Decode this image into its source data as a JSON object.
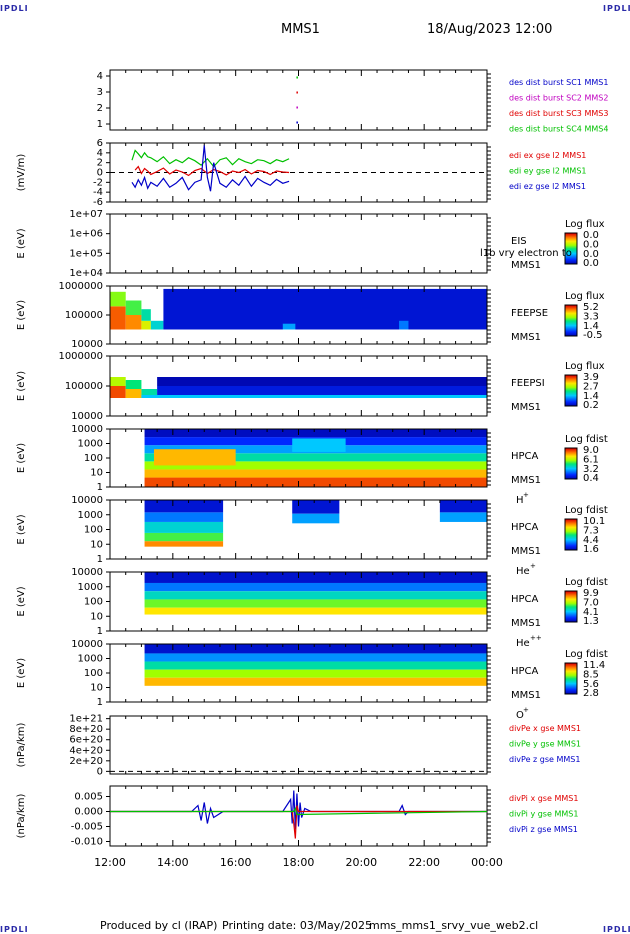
{
  "header": {
    "logo_left": "IPDLI",
    "logo_right": "IPDLI",
    "spacecraft": "MMS1",
    "datetime": "18/Aug/2023 12:00"
  },
  "footer": {
    "logo_left": "IPDLI",
    "logo_right": "IPDLI",
    "produced_by": "Produced by cl (IRAP)",
    "printing_date": "Printing date: 03/May/2025",
    "script_name": "mms_mms1_srvy_vue_web2.cl"
  },
  "time_axis": {
    "labels": [
      "12:00",
      "14:00",
      "16:00",
      "18:00",
      "20:00",
      "22:00",
      "00:00"
    ],
    "start_hour": 12,
    "end_hour": 24
  },
  "chart_data": [
    {
      "id": "burst",
      "type": "scatter",
      "yticks": [
        "4",
        "3",
        "2",
        "1"
      ],
      "ylim": [
        0.5,
        4.5
      ],
      "legend": [
        {
          "label": "des dist burst SC1 MMS1",
          "color": "#0000c8"
        },
        {
          "label": "des dist burst SC2 MMS2",
          "color": "#c000c0"
        },
        {
          "label": "des dist burst SC3 MMS3",
          "color": "#e00000"
        },
        {
          "label": "des dist burst SC4 MMS4",
          "color": "#00c000"
        }
      ],
      "series": [
        {
          "name": "des dist burst SC4 MMS4",
          "color": "#00c000",
          "points": [
            [
              17.95,
              4
            ]
          ]
        },
        {
          "name": "des dist burst SC3 MMS3",
          "color": "#e00000",
          "points": [
            [
              17.95,
              3
            ]
          ]
        },
        {
          "name": "des dist burst SC2 MMS2",
          "color": "#c000c0",
          "points": [
            [
              17.95,
              2
            ]
          ]
        },
        {
          "name": "des dist burst SC1 MMS1",
          "color": "#0000c8",
          "points": [
            [
              17.95,
              1
            ]
          ]
        }
      ]
    },
    {
      "id": "edi",
      "type": "line",
      "ylabel": "(mV/m)",
      "yticks": [
        "6",
        "4",
        "2",
        "0",
        "-2",
        "-4",
        "-6"
      ],
      "ylim": [
        -6,
        6
      ],
      "legend": [
        {
          "label": "edi ex gse l2 MMS1",
          "color": "#e00000"
        },
        {
          "label": "edi ey gse l2 MMS1",
          "color": "#00c000"
        },
        {
          "label": "edi ez gse l2 MMS1",
          "color": "#0000c8"
        }
      ],
      "series": [
        {
          "name": "edi ey gse l2 MMS1",
          "color": "#00c000",
          "x": [
            12.7,
            12.8,
            12.9,
            13.0,
            13.1,
            13.2,
            13.3,
            13.5,
            13.7,
            13.9,
            14.1,
            14.3,
            14.5,
            14.7,
            14.9,
            15.1,
            15.3,
            15.5,
            15.7,
            15.9,
            16.1,
            16.3,
            16.5,
            16.7,
            16.9,
            17.1,
            17.3,
            17.5,
            17.7
          ],
          "values": [
            2.5,
            4.5,
            3.8,
            3.0,
            4.0,
            3.2,
            3.0,
            2.2,
            3.2,
            1.8,
            2.6,
            2.0,
            3.0,
            2.4,
            1.5,
            2.8,
            1.2,
            2.6,
            3.0,
            1.6,
            2.8,
            2.2,
            1.8,
            2.6,
            2.4,
            1.8,
            2.6,
            2.2,
            2.8
          ]
        },
        {
          "name": "edi ex gse l2 MMS1",
          "color": "#e00000",
          "x": [
            12.8,
            12.9,
            13.0,
            13.1,
            13.2,
            13.3,
            13.5,
            13.7,
            13.9,
            14.1,
            14.3,
            14.5,
            14.7,
            14.9,
            15.1,
            15.3,
            15.5,
            15.7,
            15.9,
            16.1,
            16.3,
            16.5,
            16.7,
            16.9,
            17.1,
            17.3,
            17.5,
            17.7
          ],
          "values": [
            0.5,
            1.2,
            -0.2,
            0.8,
            0.3,
            -0.4,
            0.2,
            0.9,
            -0.3,
            0.5,
            0.1,
            -0.6,
            0.4,
            0.8,
            -0.2,
            0.6,
            0.2,
            -0.5,
            0.3,
            0.0,
            0.6,
            -0.3,
            0.4,
            0.2,
            -0.4,
            0.3,
            0.1,
            0.0
          ]
        },
        {
          "name": "edi ez gse l2 MMS1",
          "color": "#0000c8",
          "x": [
            12.7,
            12.8,
            12.9,
            13.0,
            13.1,
            13.2,
            13.3,
            13.5,
            13.7,
            13.9,
            14.1,
            14.3,
            14.5,
            14.7,
            14.9,
            15.0,
            15.1,
            15.2,
            15.3,
            15.5,
            15.7,
            15.9,
            16.1,
            16.3,
            16.5,
            16.7,
            16.9,
            17.1,
            17.3,
            17.5,
            17.7
          ],
          "values": [
            -2.0,
            -3.0,
            -1.5,
            -2.6,
            -1.0,
            -3.2,
            -2.0,
            -2.8,
            -1.2,
            -3.0,
            -2.2,
            -1.0,
            -3.5,
            -2.0,
            -1.5,
            5.5,
            -1.0,
            -3.8,
            2.0,
            -2.2,
            -3.0,
            -1.5,
            -2.6,
            -0.8,
            -2.8,
            -1.2,
            -2.0,
            -2.6,
            -1.4,
            -2.2,
            -1.8
          ]
        }
      ],
      "reference_line": 0
    },
    {
      "id": "eis",
      "type": "heatmap",
      "ylabel": "E (eV)",
      "yticks": [
        "1e+07",
        "1e+06",
        "1e+05",
        "1e+04"
      ],
      "ylog_range": [
        4,
        7
      ],
      "instrument": [
        "EIS",
        "MMS1"
      ],
      "overlay_text": "l1b vry electron to",
      "colorbar_title": "Log flux",
      "colorbar_ticks": [
        "0.0",
        "0.0",
        "0.0",
        "0.0"
      ],
      "cells": []
    },
    {
      "id": "feepse",
      "type": "heatmap",
      "ylabel": "E (eV)",
      "yticks": [
        "1000000",
        "100000",
        "10000"
      ],
      "ylog_range": [
        4,
        6
      ],
      "instrument": [
        "FEEPSE",
        "MMS1"
      ],
      "colorbar_title": "Log flux",
      "colorbar_ticks": [
        "5.2",
        "3.3",
        "1.4",
        "-0.5"
      ],
      "cells": [
        {
          "t0": 12.0,
          "t1": 12.5,
          "e0": 4.5,
          "e1": 5.3,
          "level": 0.9
        },
        {
          "t0": 12.0,
          "t1": 12.5,
          "e0": 5.3,
          "e1": 5.8,
          "level": 0.6
        },
        {
          "t0": 12.5,
          "t1": 13.0,
          "e0": 4.5,
          "e1": 5.0,
          "level": 0.85
        },
        {
          "t0": 12.5,
          "t1": 13.0,
          "e0": 5.0,
          "e1": 5.5,
          "level": 0.55
        },
        {
          "t0": 13.0,
          "t1": 13.3,
          "e0": 4.5,
          "e1": 4.8,
          "level": 0.7
        },
        {
          "t0": 13.0,
          "t1": 13.3,
          "e0": 4.8,
          "e1": 5.2,
          "level": 0.45
        },
        {
          "t0": 13.3,
          "t1": 13.7,
          "e0": 4.5,
          "e1": 4.8,
          "level": 0.4
        },
        {
          "t0": 13.7,
          "t1": 24.0,
          "e0": 4.5,
          "e1": 5.9,
          "level": 0.08
        },
        {
          "t0": 17.5,
          "t1": 17.9,
          "e0": 4.5,
          "e1": 4.7,
          "level": 0.3
        },
        {
          "t0": 21.2,
          "t1": 21.5,
          "e0": 4.5,
          "e1": 4.8,
          "level": 0.25
        }
      ]
    },
    {
      "id": "feepsi",
      "type": "heatmap",
      "ylabel": "E (eV)",
      "yticks": [
        "1000000",
        "100000",
        "10000"
      ],
      "ylog_range": [
        4,
        6
      ],
      "instrument": [
        "FEEPSI",
        "MMS1"
      ],
      "colorbar_title": "Log flux",
      "colorbar_ticks": [
        "3.9",
        "2.7",
        "1.4",
        "0.2"
      ],
      "cells": [
        {
          "t0": 12.0,
          "t1": 12.5,
          "e0": 4.6,
          "e1": 5.0,
          "level": 0.92
        },
        {
          "t0": 12.0,
          "t1": 12.5,
          "e0": 5.0,
          "e1": 5.3,
          "level": 0.65
        },
        {
          "t0": 12.5,
          "t1": 13.0,
          "e0": 4.6,
          "e1": 4.9,
          "level": 0.8
        },
        {
          "t0": 12.5,
          "t1": 13.0,
          "e0": 4.9,
          "e1": 5.2,
          "level": 0.5
        },
        {
          "t0": 13.0,
          "t1": 13.5,
          "e0": 4.6,
          "e1": 4.9,
          "level": 0.45
        },
        {
          "t0": 13.0,
          "t1": 24.0,
          "e0": 4.6,
          "e1": 4.7,
          "level": 0.35
        },
        {
          "t0": 13.5,
          "t1": 24.0,
          "e0": 4.7,
          "e1": 5.0,
          "level": 0.1
        },
        {
          "t0": 13.5,
          "t1": 24.0,
          "e0": 5.0,
          "e1": 5.3,
          "level": 0.03
        }
      ]
    },
    {
      "id": "hpca_h",
      "type": "heatmap",
      "ylabel": "E (eV)",
      "yticks": [
        "10000",
        "1000",
        "100",
        "10",
        "1"
      ],
      "ylog_range": [
        0,
        4.3
      ],
      "instrument": [
        "HPCA",
        "MMS1",
        "H",
        "+"
      ],
      "colorbar_title": "Log fdist",
      "colorbar_ticks": [
        "9.0",
        "6.1",
        "3.2",
        "0.4"
      ],
      "cells": [
        {
          "t0": 13.1,
          "t1": 24.0,
          "e0": 0.0,
          "e1": 0.7,
          "level": 0.92
        },
        {
          "t0": 13.1,
          "t1": 24.0,
          "e0": 0.7,
          "e1": 1.3,
          "level": 0.8
        },
        {
          "t0": 13.1,
          "t1": 24.0,
          "e0": 1.3,
          "e1": 1.9,
          "level": 0.62
        },
        {
          "t0": 13.1,
          "t1": 24.0,
          "e0": 1.9,
          "e1": 2.5,
          "level": 0.45
        },
        {
          "t0": 13.1,
          "t1": 24.0,
          "e0": 2.5,
          "e1": 3.1,
          "level": 0.3
        },
        {
          "t0": 13.1,
          "t1": 24.0,
          "e0": 3.1,
          "e1": 3.7,
          "level": 0.15
        },
        {
          "t0": 13.1,
          "t1": 24.0,
          "e0": 3.7,
          "e1": 4.3,
          "level": 0.05
        },
        {
          "t0": 13.4,
          "t1": 16.0,
          "e0": 1.6,
          "e1": 2.8,
          "level": 0.8
        },
        {
          "t0": 17.8,
          "t1": 19.5,
          "e0": 2.6,
          "e1": 3.6,
          "level": 0.35
        }
      ]
    },
    {
      "id": "hpca_he",
      "type": "heatmap",
      "ylabel": "E (eV)",
      "yticks": [
        "10000",
        "1000",
        "100",
        "10",
        "1"
      ],
      "ylog_range": [
        0,
        4.3
      ],
      "instrument": [
        "HPCA",
        "MMS1",
        "He",
        "+"
      ],
      "colorbar_title": "Log fdist",
      "colorbar_ticks": [
        "10.1",
        "7.3",
        "4.4",
        "1.6"
      ],
      "cells": [
        {
          "t0": 13.1,
          "t1": 15.6,
          "e0": 0.9,
          "e1": 1.3,
          "level": 0.85
        },
        {
          "t0": 13.1,
          "t1": 15.6,
          "e0": 1.3,
          "e1": 1.9,
          "level": 0.55
        },
        {
          "t0": 13.1,
          "t1": 15.6,
          "e0": 1.9,
          "e1": 2.7,
          "level": 0.4
        },
        {
          "t0": 13.1,
          "t1": 15.6,
          "e0": 2.7,
          "e1": 3.4,
          "level": 0.25
        },
        {
          "t0": 13.1,
          "t1": 15.6,
          "e0": 3.4,
          "e1": 4.3,
          "level": 0.08
        },
        {
          "t0": 17.8,
          "t1": 19.3,
          "e0": 3.3,
          "e1": 4.3,
          "level": 0.08
        },
        {
          "t0": 17.8,
          "t1": 19.3,
          "e0": 2.6,
          "e1": 3.3,
          "level": 0.3
        },
        {
          "t0": 22.5,
          "t1": 24.0,
          "e0": 2.7,
          "e1": 3.4,
          "level": 0.3
        },
        {
          "t0": 22.5,
          "t1": 24.0,
          "e0": 3.4,
          "e1": 4.3,
          "level": 0.08
        }
      ]
    },
    {
      "id": "hpca_hepp",
      "type": "heatmap",
      "ylabel": "E (eV)",
      "yticks": [
        "10000",
        "1000",
        "100",
        "10",
        "1"
      ],
      "ylog_range": [
        0,
        4.3
      ],
      "instrument": [
        "HPCA",
        "MMS1",
        "He",
        "++"
      ],
      "colorbar_title": "Log fdist",
      "colorbar_ticks": [
        "9.9",
        "7.0",
        "4.1",
        "1.3"
      ],
      "cells": [
        {
          "t0": 13.1,
          "t1": 24.0,
          "e0": 3.5,
          "e1": 4.3,
          "level": 0.07
        },
        {
          "t0": 13.1,
          "t1": 24.0,
          "e0": 2.9,
          "e1": 3.5,
          "level": 0.25
        },
        {
          "t0": 13.1,
          "t1": 24.0,
          "e0": 2.3,
          "e1": 2.9,
          "level": 0.42
        },
        {
          "t0": 13.1,
          "t1": 24.0,
          "e0": 1.7,
          "e1": 2.3,
          "level": 0.58
        },
        {
          "t0": 13.1,
          "t1": 24.0,
          "e0": 1.2,
          "e1": 1.7,
          "level": 0.75
        }
      ]
    },
    {
      "id": "hpca_o",
      "type": "heatmap",
      "ylabel": "E (eV)",
      "yticks": [
        "10000",
        "1000",
        "100",
        "10",
        "1"
      ],
      "ylog_range": [
        0,
        4.3
      ],
      "instrument": [
        "HPCA",
        "MMS1",
        "O",
        "+"
      ],
      "colorbar_title": "Log fdist",
      "colorbar_ticks": [
        "11.4",
        "8.5",
        "5.6",
        "2.8"
      ],
      "cells": [
        {
          "t0": 13.1,
          "t1": 24.0,
          "e0": 3.6,
          "e1": 4.3,
          "level": 0.07
        },
        {
          "t0": 13.1,
          "t1": 24.0,
          "e0": 3.0,
          "e1": 3.6,
          "level": 0.28
        },
        {
          "t0": 13.1,
          "t1": 24.0,
          "e0": 2.4,
          "e1": 3.0,
          "level": 0.45
        },
        {
          "t0": 13.1,
          "t1": 24.0,
          "e0": 1.8,
          "e1": 2.4,
          "level": 0.62
        },
        {
          "t0": 13.1,
          "t1": 24.0,
          "e0": 1.2,
          "e1": 1.8,
          "level": 0.8
        }
      ]
    },
    {
      "id": "divpe",
      "type": "line",
      "ylabel": "(nPa/km)",
      "yticks": [
        "1e+21",
        "8e+20",
        "6e+20",
        "4e+20",
        "2e+20",
        "0"
      ],
      "ylim": [
        -5e+19,
        1.05e+21
      ],
      "legend": [
        {
          "label": "divPe x gse MMS1",
          "color": "#e00000"
        },
        {
          "label": "divPe y gse MMS1",
          "color": "#00c000"
        },
        {
          "label": "divPe z gse MMS1",
          "color": "#0000c8"
        }
      ],
      "series": [],
      "reference_line": 0
    },
    {
      "id": "divpi",
      "type": "line",
      "ylabel": "(nPa/km)",
      "yticks": [
        "0.005",
        "0.000",
        "-0.005",
        "-0.010"
      ],
      "ylim": [
        -0.0115,
        0.0085
      ],
      "legend": [
        {
          "label": "divPi x gse MMS1",
          "color": "#e00000"
        },
        {
          "label": "divPi y gse MMS1",
          "color": "#00c000"
        },
        {
          "label": "divPi z gse MMS1",
          "color": "#0000c8"
        }
      ],
      "series": [
        {
          "name": "divPi z gse MMS1",
          "color": "#0000c8",
          "x": [
            12.0,
            14.6,
            14.8,
            14.9,
            15.0,
            15.1,
            15.2,
            15.3,
            15.6,
            16.5,
            17.5,
            17.75,
            17.8,
            17.85,
            17.9,
            17.95,
            18.0,
            18.05,
            18.1,
            18.2,
            18.4,
            19.0,
            21.2,
            21.3,
            21.4,
            21.5,
            22.0,
            23.0,
            24.0
          ],
          "values": [
            0,
            0,
            0.002,
            -0.003,
            0.003,
            -0.004,
            0.001,
            -0.002,
            0,
            0,
            0,
            0.004,
            -0.004,
            0.007,
            -0.006,
            0.006,
            -0.005,
            0.003,
            -0.002,
            0.001,
            0,
            0,
            0,
            0.002,
            -0.001,
            0,
            0,
            0,
            0
          ]
        },
        {
          "name": "divPi x gse MMS1",
          "color": "#e00000",
          "x": [
            12.0,
            17.8,
            17.85,
            17.9,
            17.95,
            18.0,
            24.0
          ],
          "values": [
            0,
            0,
            -0.004,
            -0.009,
            0.002,
            0,
            0
          ]
        },
        {
          "name": "divPi y gse MMS1",
          "color": "#00c000",
          "x": [
            12.0,
            17.85,
            17.9,
            17.95,
            24.0
          ],
          "values": [
            0,
            0,
            0.001,
            -0.001,
            0
          ]
        }
      ],
      "reference_line": 0
    }
  ]
}
